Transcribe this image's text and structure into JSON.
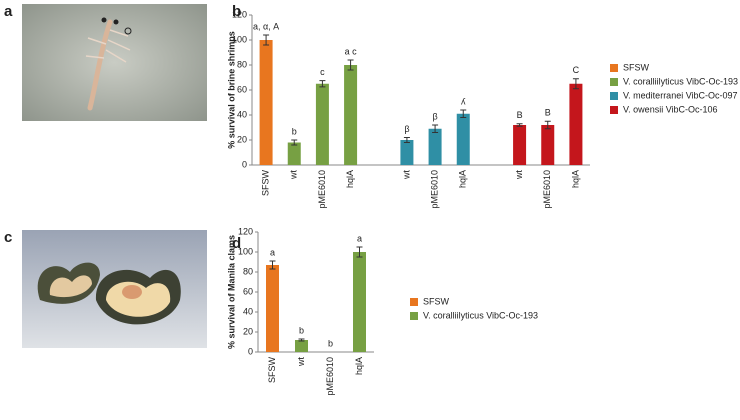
{
  "panel_labels": [
    "a",
    "b",
    "c",
    "d"
  ],
  "chart_data": [
    {
      "type": "bar",
      "y_label": "% survival of brine shrimps",
      "categories": [
        "SFSW",
        "wt",
        "pME6010",
        "hqlA",
        null,
        "wt",
        "pME6010",
        "hqlA",
        null,
        "wt",
        "pME6010",
        "hqlA"
      ],
      "series": [
        {
          "name": "SFSW",
          "color": "#e8761f",
          "values": [
            100,
            null,
            null,
            null,
            null,
            null,
            null,
            null,
            null,
            null,
            null,
            null
          ],
          "errors": [
            4,
            null,
            null,
            null,
            null,
            null,
            null,
            null,
            null,
            null,
            null,
            null
          ]
        },
        {
          "name": "V. coralliilyticus VibC-Oc-193",
          "color": "#77a043",
          "values": [
            null,
            18,
            65,
            80,
            null,
            null,
            null,
            null,
            null,
            null,
            null,
            null
          ],
          "errors": [
            null,
            2,
            2.5,
            4,
            null,
            null,
            null,
            null,
            null,
            null,
            null,
            null
          ]
        },
        {
          "name": "V. mediterranei VibC-Oc-097",
          "color": "#2f8fa5",
          "values": [
            null,
            null,
            null,
            null,
            null,
            20,
            29,
            41,
            null,
            null,
            null,
            null
          ],
          "errors": [
            null,
            null,
            null,
            null,
            null,
            2,
            3,
            3,
            null,
            null,
            null,
            null
          ]
        },
        {
          "name": "V. owensii VibC-Oc-106",
          "color": "#c4161c",
          "values": [
            null,
            null,
            null,
            null,
            null,
            null,
            null,
            null,
            null,
            32,
            32,
            65
          ],
          "errors": [
            null,
            null,
            null,
            null,
            null,
            null,
            null,
            null,
            null,
            1,
            3,
            4
          ]
        }
      ],
      "letters": [
        "a, α, A",
        "b",
        "c",
        "a   c",
        null,
        "β",
        "β",
        "ʎ",
        null,
        "B",
        "B",
        "C"
      ],
      "ylim": [
        0,
        120
      ],
      "yticks": [
        0,
        20,
        40,
        60,
        80,
        100,
        120
      ],
      "grid": false,
      "legend": "right"
    },
    {
      "type": "bar",
      "y_label": "% survival of Manila clams",
      "categories": [
        "SFSW",
        "wt",
        "pME6010",
        "hqlA"
      ],
      "series": [
        {
          "name": "SFSW",
          "color": "#e8761f",
          "values": [
            87,
            null,
            null,
            null
          ],
          "errors": [
            4,
            null,
            null,
            null
          ]
        },
        {
          "name": "V. coralliilyticus VibC-Oc-193",
          "color": "#77a043",
          "values": [
            null,
            12,
            0,
            100
          ],
          "errors": [
            null,
            1,
            null,
            5
          ]
        }
      ],
      "letters": [
        "a",
        "b",
        "b",
        "a"
      ],
      "ylim": [
        0,
        120
      ],
      "yticks": [
        0,
        20,
        40,
        60,
        80,
        100,
        120
      ],
      "grid": false,
      "legend": "right"
    }
  ]
}
